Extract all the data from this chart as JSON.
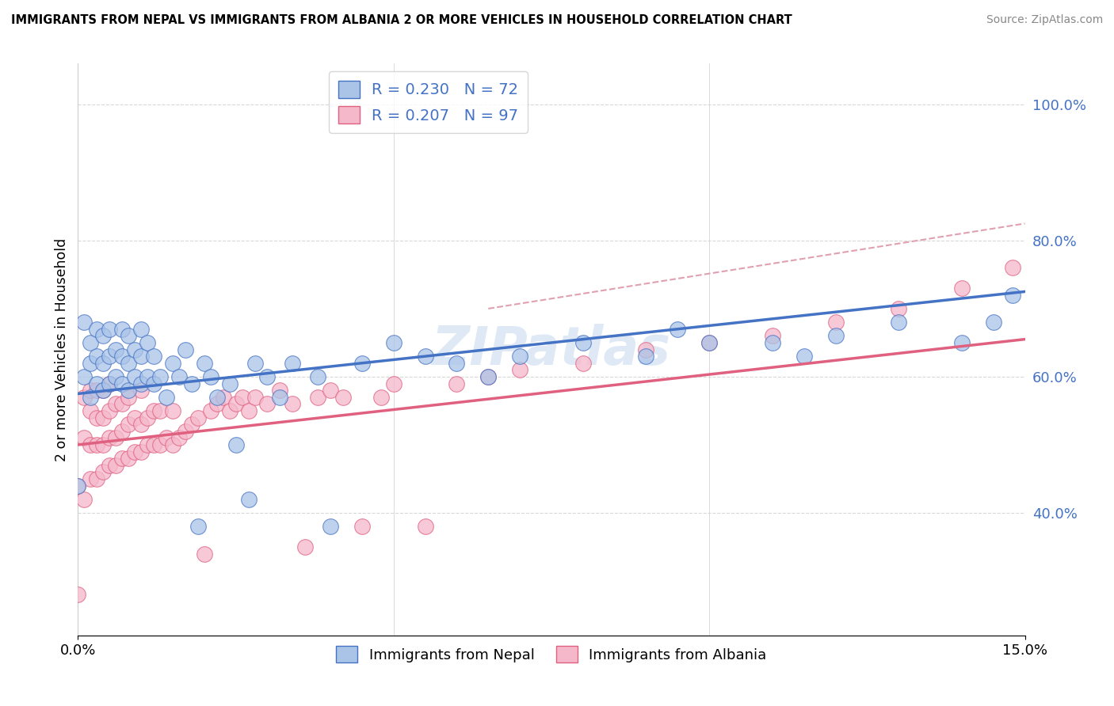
{
  "title": "IMMIGRANTS FROM NEPAL VS IMMIGRANTS FROM ALBANIA 2 OR MORE VEHICLES IN HOUSEHOLD CORRELATION CHART",
  "source": "Source: ZipAtlas.com",
  "ylabel": "2 or more Vehicles in Household",
  "xmin": 0.0,
  "xmax": 0.15,
  "ymin": 0.22,
  "ymax": 1.06,
  "x_tick_labels": [
    "0.0%",
    "15.0%"
  ],
  "y_ticks": [
    0.4,
    0.6,
    0.8,
    1.0
  ],
  "y_tick_labels": [
    "40.0%",
    "60.0%",
    "80.0%",
    "100.0%"
  ],
  "scatter_nepal_color": "#aac4e8",
  "scatter_albania_color": "#f5b8cb",
  "line_nepal_color": "#4472c4",
  "line_albania_color": "#e06080",
  "trend_dash_color": "#e0a0b0",
  "watermark": "ZIPatlas",
  "nepal_trend": [
    0.0,
    0.575,
    0.15,
    0.725
  ],
  "albania_trend": [
    0.0,
    0.5,
    0.15,
    0.655
  ],
  "dashed_trend": [
    0.065,
    0.7,
    0.15,
    0.825
  ],
  "background_color": "#ffffff",
  "grid_color": "#d8d8d8",
  "nepal_points": [
    [
      0.0,
      0.44
    ],
    [
      0.001,
      0.6
    ],
    [
      0.001,
      0.68
    ],
    [
      0.002,
      0.57
    ],
    [
      0.002,
      0.62
    ],
    [
      0.002,
      0.65
    ],
    [
      0.003,
      0.59
    ],
    [
      0.003,
      0.63
    ],
    [
      0.003,
      0.67
    ],
    [
      0.004,
      0.58
    ],
    [
      0.004,
      0.62
    ],
    [
      0.004,
      0.66
    ],
    [
      0.005,
      0.59
    ],
    [
      0.005,
      0.63
    ],
    [
      0.005,
      0.67
    ],
    [
      0.006,
      0.6
    ],
    [
      0.006,
      0.64
    ],
    [
      0.007,
      0.59
    ],
    [
      0.007,
      0.63
    ],
    [
      0.007,
      0.67
    ],
    [
      0.008,
      0.58
    ],
    [
      0.008,
      0.62
    ],
    [
      0.008,
      0.66
    ],
    [
      0.009,
      0.6
    ],
    [
      0.009,
      0.64
    ],
    [
      0.01,
      0.59
    ],
    [
      0.01,
      0.63
    ],
    [
      0.01,
      0.67
    ],
    [
      0.011,
      0.6
    ],
    [
      0.011,
      0.65
    ],
    [
      0.012,
      0.59
    ],
    [
      0.012,
      0.63
    ],
    [
      0.013,
      0.6
    ],
    [
      0.014,
      0.57
    ],
    [
      0.015,
      0.62
    ],
    [
      0.016,
      0.6
    ],
    [
      0.017,
      0.64
    ],
    [
      0.018,
      0.59
    ],
    [
      0.019,
      0.38
    ],
    [
      0.02,
      0.62
    ],
    [
      0.021,
      0.6
    ],
    [
      0.022,
      0.57
    ],
    [
      0.024,
      0.59
    ],
    [
      0.025,
      0.5
    ],
    [
      0.027,
      0.42
    ],
    [
      0.028,
      0.62
    ],
    [
      0.03,
      0.6
    ],
    [
      0.032,
      0.57
    ],
    [
      0.034,
      0.62
    ],
    [
      0.038,
      0.6
    ],
    [
      0.04,
      0.38
    ],
    [
      0.045,
      0.62
    ],
    [
      0.05,
      0.65
    ],
    [
      0.055,
      0.63
    ],
    [
      0.06,
      0.62
    ],
    [
      0.065,
      0.6
    ],
    [
      0.07,
      0.63
    ],
    [
      0.08,
      0.65
    ],
    [
      0.09,
      0.63
    ],
    [
      0.095,
      0.67
    ],
    [
      0.1,
      0.65
    ],
    [
      0.11,
      0.65
    ],
    [
      0.115,
      0.63
    ],
    [
      0.12,
      0.66
    ],
    [
      0.13,
      0.68
    ],
    [
      0.14,
      0.65
    ],
    [
      0.145,
      0.68
    ],
    [
      0.148,
      0.72
    ]
  ],
  "albania_points": [
    [
      0.0,
      0.28
    ],
    [
      0.0,
      0.44
    ],
    [
      0.001,
      0.42
    ],
    [
      0.001,
      0.51
    ],
    [
      0.001,
      0.57
    ],
    [
      0.002,
      0.45
    ],
    [
      0.002,
      0.5
    ],
    [
      0.002,
      0.55
    ],
    [
      0.002,
      0.58
    ],
    [
      0.003,
      0.45
    ],
    [
      0.003,
      0.5
    ],
    [
      0.003,
      0.54
    ],
    [
      0.003,
      0.58
    ],
    [
      0.004,
      0.46
    ],
    [
      0.004,
      0.5
    ],
    [
      0.004,
      0.54
    ],
    [
      0.004,
      0.58
    ],
    [
      0.005,
      0.47
    ],
    [
      0.005,
      0.51
    ],
    [
      0.005,
      0.55
    ],
    [
      0.005,
      0.59
    ],
    [
      0.006,
      0.47
    ],
    [
      0.006,
      0.51
    ],
    [
      0.006,
      0.56
    ],
    [
      0.007,
      0.48
    ],
    [
      0.007,
      0.52
    ],
    [
      0.007,
      0.56
    ],
    [
      0.008,
      0.48
    ],
    [
      0.008,
      0.53
    ],
    [
      0.008,
      0.57
    ],
    [
      0.009,
      0.49
    ],
    [
      0.009,
      0.54
    ],
    [
      0.01,
      0.49
    ],
    [
      0.01,
      0.53
    ],
    [
      0.01,
      0.58
    ],
    [
      0.011,
      0.5
    ],
    [
      0.011,
      0.54
    ],
    [
      0.012,
      0.5
    ],
    [
      0.012,
      0.55
    ],
    [
      0.013,
      0.5
    ],
    [
      0.013,
      0.55
    ],
    [
      0.014,
      0.51
    ],
    [
      0.015,
      0.5
    ],
    [
      0.015,
      0.55
    ],
    [
      0.016,
      0.51
    ],
    [
      0.017,
      0.52
    ],
    [
      0.018,
      0.53
    ],
    [
      0.019,
      0.54
    ],
    [
      0.02,
      0.34
    ],
    [
      0.021,
      0.55
    ],
    [
      0.022,
      0.56
    ],
    [
      0.023,
      0.57
    ],
    [
      0.024,
      0.55
    ],
    [
      0.025,
      0.56
    ],
    [
      0.026,
      0.57
    ],
    [
      0.027,
      0.55
    ],
    [
      0.028,
      0.57
    ],
    [
      0.03,
      0.56
    ],
    [
      0.032,
      0.58
    ],
    [
      0.034,
      0.56
    ],
    [
      0.036,
      0.35
    ],
    [
      0.038,
      0.57
    ],
    [
      0.04,
      0.58
    ],
    [
      0.042,
      0.57
    ],
    [
      0.045,
      0.38
    ],
    [
      0.048,
      0.57
    ],
    [
      0.05,
      0.59
    ],
    [
      0.055,
      0.38
    ],
    [
      0.06,
      0.59
    ],
    [
      0.065,
      0.6
    ],
    [
      0.07,
      0.61
    ],
    [
      0.08,
      0.62
    ],
    [
      0.09,
      0.64
    ],
    [
      0.1,
      0.65
    ],
    [
      0.11,
      0.66
    ],
    [
      0.12,
      0.68
    ],
    [
      0.13,
      0.7
    ],
    [
      0.14,
      0.73
    ],
    [
      0.148,
      0.76
    ]
  ]
}
